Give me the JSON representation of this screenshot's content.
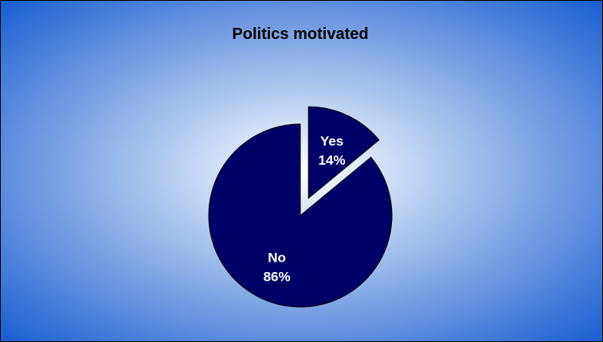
{
  "chart_data": {
    "type": "pie",
    "title": "Politics motivated",
    "slices": [
      {
        "label": "Yes",
        "value": 14,
        "value_label": "14%",
        "color": "#000066",
        "exploded": true
      },
      {
        "label": "No",
        "value": 86,
        "value_label": "86%",
        "color": "#000066",
        "exploded": false
      }
    ],
    "background": {
      "center_color": "#ffffff",
      "edge_color": "#1a5fd0"
    },
    "slice_outline_color": "#000000"
  }
}
